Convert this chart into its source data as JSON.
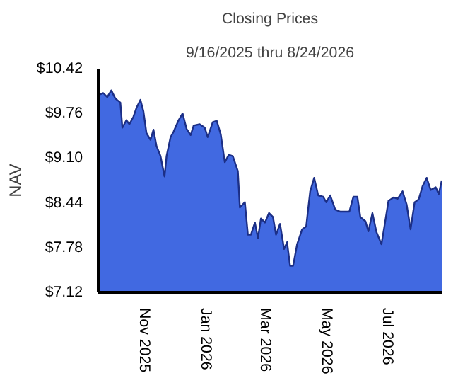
{
  "chart_data": {
    "type": "area",
    "title": "Closing Prices",
    "subtitle": "9/16/2025 thru 8/24/2026",
    "ylabel": "NAV",
    "xlim": [
      "2025-09-16",
      "2026-08-24"
    ],
    "xticks": [
      {
        "value": "2025-11-01",
        "label": "Nov 2025"
      },
      {
        "value": "2026-01-01",
        "label": "Jan 2026"
      },
      {
        "value": "2026-03-01",
        "label": "Mar 2026"
      },
      {
        "value": "2026-05-01",
        "label": "May 2026"
      },
      {
        "value": "2026-07-01",
        "label": "Jul 2026"
      }
    ],
    "ylim": [
      7.12,
      10.42
    ],
    "yticks": [
      {
        "value": 7.12,
        "label": "$7.12"
      },
      {
        "value": 7.78,
        "label": "$7.78"
      },
      {
        "value": 8.44,
        "label": "$8.44"
      },
      {
        "value": 9.1,
        "label": "$9.10"
      },
      {
        "value": 9.76,
        "label": "$9.76"
      },
      {
        "value": 10.42,
        "label": "$10.42"
      }
    ],
    "grid": false,
    "x": [
      "2025-09-16",
      "2025-09-21",
      "2025-09-25",
      "2025-09-29",
      "2025-10-03",
      "2025-10-08",
      "2025-10-10",
      "2025-10-14",
      "2025-10-17",
      "2025-10-21",
      "2025-10-24",
      "2025-10-28",
      "2025-10-31",
      "2025-11-03",
      "2025-11-07",
      "2025-11-10",
      "2025-11-13",
      "2025-11-17",
      "2025-11-21",
      "2025-11-23",
      "2025-11-27",
      "2025-11-30",
      "2025-12-05",
      "2025-12-09",
      "2025-12-13",
      "2025-12-17",
      "2025-12-20",
      "2025-12-26",
      "2025-12-31",
      "2026-01-03",
      "2026-01-08",
      "2026-01-12",
      "2026-01-16",
      "2026-01-20",
      "2026-01-24",
      "2026-01-28",
      "2026-02-02",
      "2026-02-04",
      "2026-02-09",
      "2026-02-12",
      "2026-02-15",
      "2026-02-19",
      "2026-02-22",
      "2026-02-25",
      "2026-03-01",
      "2026-03-05",
      "2026-03-09",
      "2026-03-12",
      "2026-03-16",
      "2026-03-20",
      "2026-03-23",
      "2026-03-26",
      "2026-03-29",
      "2026-04-02",
      "2026-04-07",
      "2026-04-11",
      "2026-04-15",
      "2026-04-19",
      "2026-04-23",
      "2026-04-28",
      "2026-05-01",
      "2026-05-05",
      "2026-05-10",
      "2026-05-15",
      "2026-05-19",
      "2026-05-24",
      "2026-05-28",
      "2026-06-01",
      "2026-06-04",
      "2026-06-09",
      "2026-06-12",
      "2026-06-16",
      "2026-06-20",
      "2026-06-25",
      "2026-06-28",
      "2026-07-02",
      "2026-07-07",
      "2026-07-11",
      "2026-07-16",
      "2026-07-20",
      "2026-07-24",
      "2026-07-28",
      "2026-08-01",
      "2026-08-05",
      "2026-08-09",
      "2026-08-13",
      "2026-08-18",
      "2026-08-21",
      "2026-08-24"
    ],
    "series": [
      {
        "color": "#4169e1",
        "values": [
          10.03,
          10.06,
          10.0,
          10.1,
          9.98,
          9.92,
          9.55,
          9.66,
          9.6,
          9.71,
          9.84,
          9.96,
          9.79,
          9.47,
          9.37,
          9.52,
          9.28,
          9.13,
          8.83,
          9.13,
          9.41,
          9.49,
          9.66,
          9.76,
          9.53,
          9.44,
          9.58,
          9.6,
          9.55,
          9.41,
          9.63,
          9.65,
          9.45,
          9.04,
          9.15,
          9.13,
          8.91,
          8.37,
          8.45,
          7.97,
          7.97,
          8.15,
          7.92,
          8.21,
          8.15,
          8.29,
          8.23,
          7.97,
          8.13,
          7.76,
          7.86,
          7.51,
          7.51,
          7.83,
          8.05,
          8.09,
          8.61,
          8.81,
          8.55,
          8.53,
          8.45,
          8.55,
          8.34,
          8.31,
          8.31,
          8.31,
          8.53,
          8.53,
          8.23,
          8.17,
          8.02,
          8.29,
          8.01,
          7.83,
          8.1,
          8.47,
          8.52,
          8.5,
          8.61,
          8.42,
          8.05,
          8.45,
          8.49,
          8.69,
          8.81,
          8.63,
          8.67,
          8.57,
          8.77
        ]
      }
    ]
  }
}
